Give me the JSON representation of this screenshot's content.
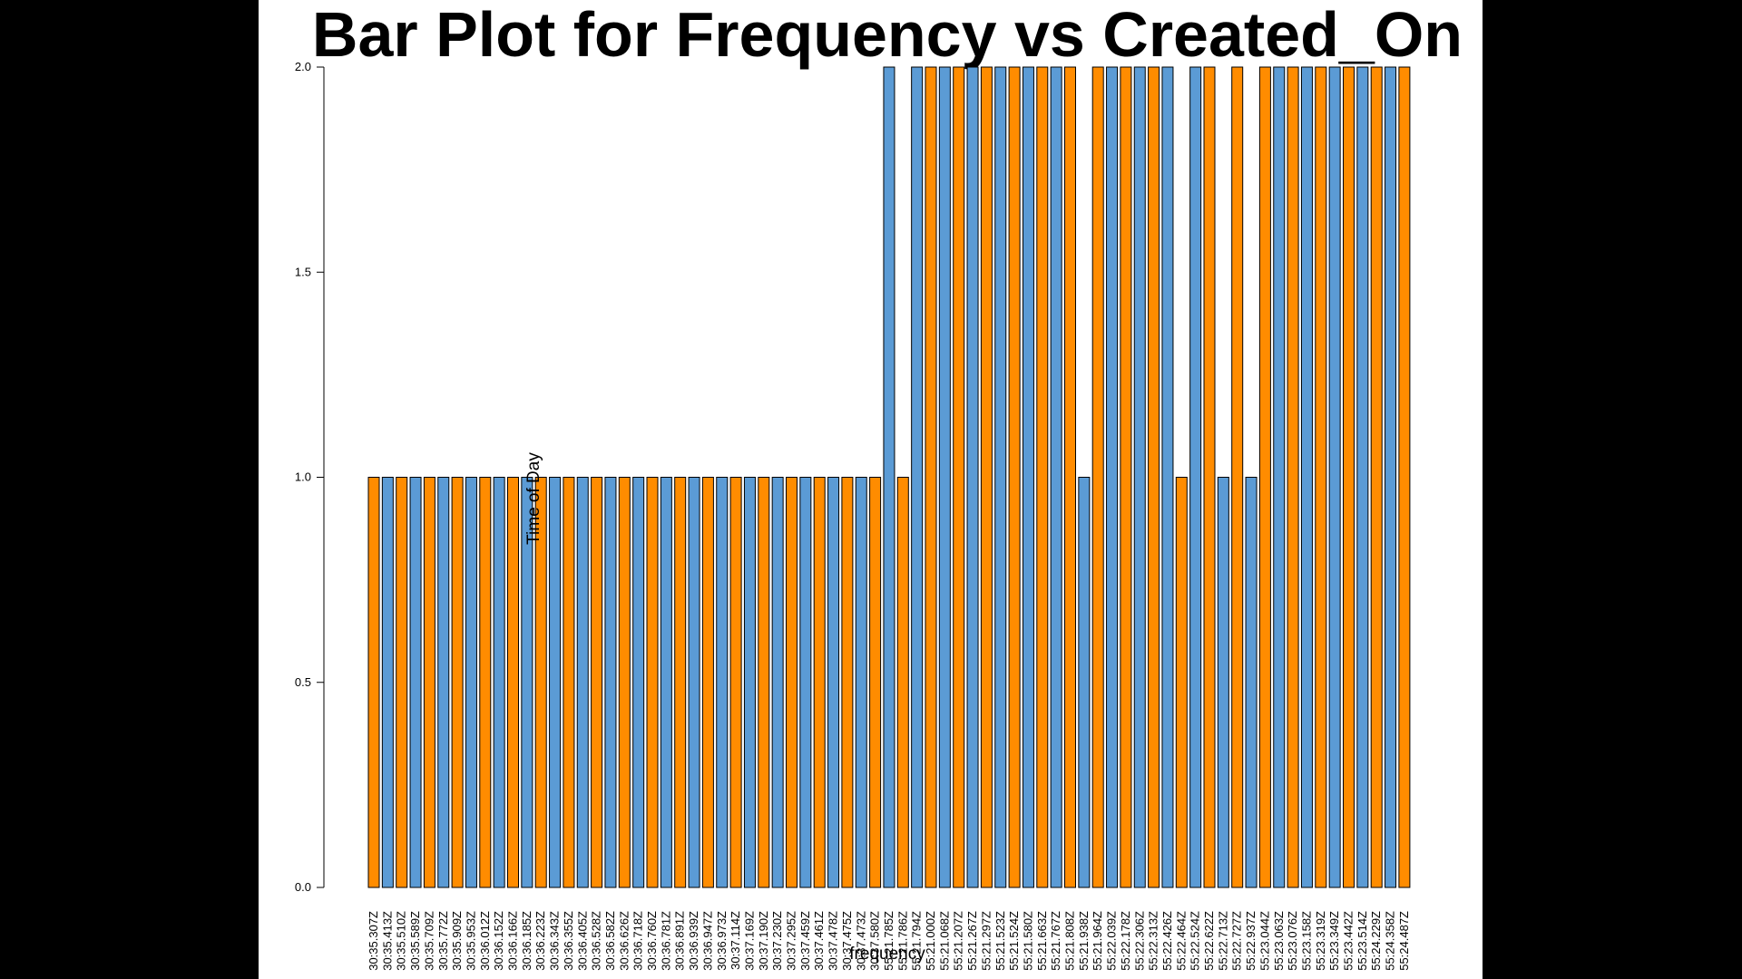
{
  "chart_data": {
    "type": "bar",
    "title": "Bar Plot for Frequency vs Created_On",
    "xlabel": "frequency",
    "ylabel": "Time of Day",
    "ylim": [
      0,
      2
    ],
    "yticks": [
      "0.0",
      "0.5",
      "1.0",
      "1.5",
      "2.0"
    ],
    "grid": false,
    "colors": {
      "bar_a": "#ff8c00",
      "bar_b": "#5b9bd5",
      "outline": "#000000"
    },
    "categories": [
      "30:35.307Z",
      "30:35.413Z",
      "30:35.510Z",
      "30:35.589Z",
      "30:35.709Z",
      "30:35.772Z",
      "30:35.909Z",
      "30:35.953Z",
      "30:36.012Z",
      "30:36.152Z",
      "30:36.166Z",
      "30:36.185Z",
      "30:36.223Z",
      "30:36.343Z",
      "30:36.355Z",
      "30:36.405Z",
      "30:36.528Z",
      "30:36.582Z",
      "30:36.626Z",
      "30:36.718Z",
      "30:36.760Z",
      "30:36.781Z",
      "30:36.891Z",
      "30:36.939Z",
      "30:36.947Z",
      "30:36.973Z",
      "30:37.114Z",
      "30:37.169Z",
      "30:37.190Z",
      "30:37.230Z",
      "30:37.295Z",
      "30:37.459Z",
      "30:37.461Z",
      "30:37.478Z",
      "30:37.475Z",
      "30:37.473Z",
      "30:37.580Z",
      "55:21.785Z",
      "55:21.786Z",
      "55:21.794Z",
      "55:21.000Z",
      "55:21.068Z",
      "55:21.207Z",
      "55:21.267Z",
      "55:21.297Z",
      "55:21.523Z",
      "55:21.524Z",
      "55:21.580Z",
      "55:21.663Z",
      "55:21.767Z",
      "55:21.808Z",
      "55:21.938Z",
      "55:21.964Z",
      "55:22.039Z",
      "55:22.178Z",
      "55:22.306Z",
      "55:22.313Z",
      "55:22.426Z",
      "55:22.464Z",
      "55:22.524Z",
      "55:22.622Z",
      "55:22.713Z",
      "55:22.727Z",
      "55:22.937Z",
      "55:23.044Z",
      "55:23.063Z",
      "55:23.076Z",
      "55:23.158Z",
      "55:23.319Z",
      "55:23.349Z",
      "55:23.442Z",
      "55:23.514Z",
      "55:24.229Z",
      "55:24.358Z",
      "55:24.487Z"
    ],
    "values": [
      1,
      1,
      1,
      1,
      1,
      1,
      1,
      1,
      1,
      1,
      1,
      1,
      1,
      1,
      1,
      1,
      1,
      1,
      1,
      1,
      1,
      1,
      1,
      1,
      1,
      1,
      1,
      1,
      1,
      1,
      1,
      1,
      1,
      1,
      1,
      1,
      1,
      2,
      1,
      2,
      2,
      2,
      2,
      2,
      2,
      2,
      2,
      2,
      2,
      2,
      2,
      1,
      2,
      2,
      2,
      2,
      2,
      2,
      1,
      2,
      2,
      1,
      2,
      1,
      2,
      2,
      2,
      2,
      2,
      2,
      2,
      2,
      2,
      2,
      2
    ],
    "bar_color_keys": [
      "a",
      "b",
      "a",
      "b",
      "a",
      "b",
      "a",
      "b",
      "a",
      "b",
      "a",
      "b",
      "a",
      "b",
      "a",
      "b",
      "a",
      "b",
      "a",
      "b",
      "a",
      "b",
      "a",
      "b",
      "a",
      "b",
      "a",
      "b",
      "a",
      "b",
      "a",
      "b",
      "a",
      "b",
      "a",
      "b",
      "a",
      "b",
      "a",
      "b",
      "a",
      "b",
      "a",
      "b",
      "a",
      "b",
      "a",
      "b",
      "a",
      "b",
      "a",
      "b",
      "a",
      "b",
      "a",
      "b",
      "a",
      "b",
      "a",
      "b",
      "a",
      "b",
      "a",
      "b",
      "a",
      "b",
      "a",
      "b",
      "a",
      "b",
      "a",
      "b",
      "a",
      "b",
      "a"
    ]
  }
}
